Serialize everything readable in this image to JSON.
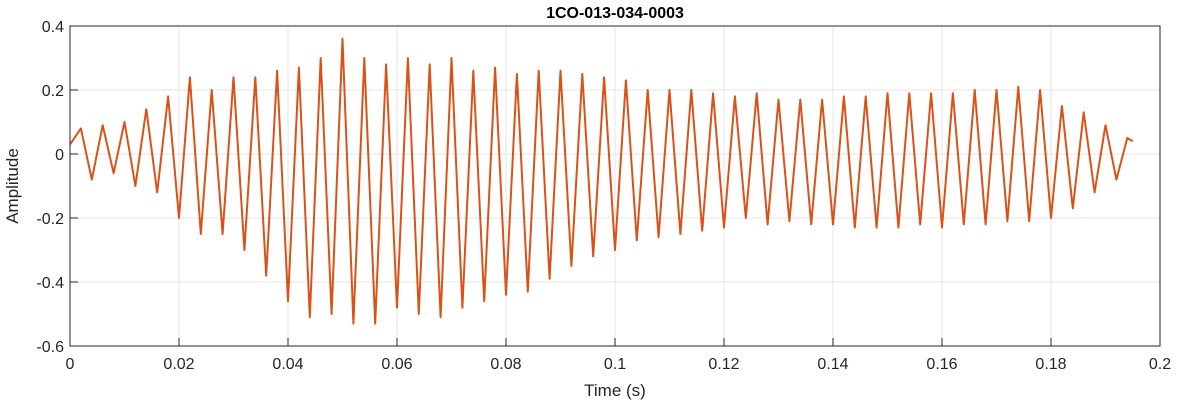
{
  "chart_data": {
    "type": "line",
    "title": "1CO-013-034-0003",
    "xlabel": "Time (s)",
    "ylabel": "Amplitude",
    "xlim": [
      0,
      0.2
    ],
    "ylim": [
      -0.6,
      0.4
    ],
    "xticks": [
      0,
      0.02,
      0.04,
      0.06,
      0.08,
      0.1,
      0.12,
      0.14,
      0.16,
      0.18,
      0.2
    ],
    "xtick_labels": [
      "0",
      "0.02",
      "0.04",
      "0.06",
      "0.08",
      "0.1",
      "0.12",
      "0.14",
      "0.16",
      "0.18",
      "0.2"
    ],
    "yticks": [
      0.4,
      0.2,
      0,
      -0.2,
      -0.4,
      -0.6
    ],
    "ytick_labels": [
      "0.4",
      "0.2",
      "0",
      "-0.2",
      "-0.4",
      "-0.6"
    ],
    "grid": true,
    "series": [
      {
        "color": "#D95319",
        "x": [
          0,
          0.002,
          0.004,
          0.006,
          0.008,
          0.01,
          0.012,
          0.014,
          0.016,
          0.018,
          0.02,
          0.022,
          0.024,
          0.026,
          0.028,
          0.03,
          0.032,
          0.034,
          0.036,
          0.038,
          0.04,
          0.042,
          0.044,
          0.046,
          0.048,
          0.05,
          0.052,
          0.054,
          0.056,
          0.058,
          0.06,
          0.062,
          0.064,
          0.066,
          0.068,
          0.07,
          0.072,
          0.074,
          0.076,
          0.078,
          0.08,
          0.082,
          0.084,
          0.086,
          0.088,
          0.09,
          0.092,
          0.094,
          0.096,
          0.098,
          0.1,
          0.102,
          0.104,
          0.106,
          0.108,
          0.11,
          0.112,
          0.114,
          0.116,
          0.118,
          0.12,
          0.122,
          0.124,
          0.126,
          0.128,
          0.13,
          0.132,
          0.134,
          0.136,
          0.138,
          0.14,
          0.142,
          0.144,
          0.146,
          0.148,
          0.15,
          0.152,
          0.154,
          0.156,
          0.158,
          0.16,
          0.162,
          0.164,
          0.166,
          0.168,
          0.17,
          0.172,
          0.174,
          0.176,
          0.178,
          0.18,
          0.182,
          0.184,
          0.186,
          0.188,
          0.19,
          0.192,
          0.194,
          0.195
        ],
        "y": [
          0.03,
          0.08,
          -0.08,
          0.09,
          -0.06,
          0.1,
          -0.1,
          0.14,
          -0.12,
          0.18,
          -0.2,
          0.24,
          -0.25,
          0.2,
          -0.25,
          0.24,
          -0.3,
          0.24,
          -0.38,
          0.26,
          -0.46,
          0.27,
          -0.51,
          0.3,
          -0.5,
          0.36,
          -0.53,
          0.3,
          -0.53,
          0.28,
          -0.48,
          0.3,
          -0.5,
          0.28,
          -0.51,
          0.3,
          -0.48,
          0.26,
          -0.46,
          0.27,
          -0.44,
          0.25,
          -0.43,
          0.26,
          -0.39,
          0.26,
          -0.35,
          0.25,
          -0.32,
          0.24,
          -0.3,
          0.23,
          -0.27,
          0.2,
          -0.26,
          0.2,
          -0.25,
          0.2,
          -0.24,
          0.19,
          -0.23,
          0.18,
          -0.2,
          0.19,
          -0.22,
          0.17,
          -0.21,
          0.17,
          -0.22,
          0.17,
          -0.22,
          0.18,
          -0.23,
          0.18,
          -0.23,
          0.19,
          -0.23,
          0.19,
          -0.22,
          0.19,
          -0.23,
          0.19,
          -0.22,
          0.2,
          -0.22,
          0.2,
          -0.21,
          0.21,
          -0.21,
          0.2,
          -0.2,
          0.15,
          -0.17,
          0.13,
          -0.12,
          0.09,
          -0.08,
          0.05,
          0.04
        ]
      }
    ]
  }
}
